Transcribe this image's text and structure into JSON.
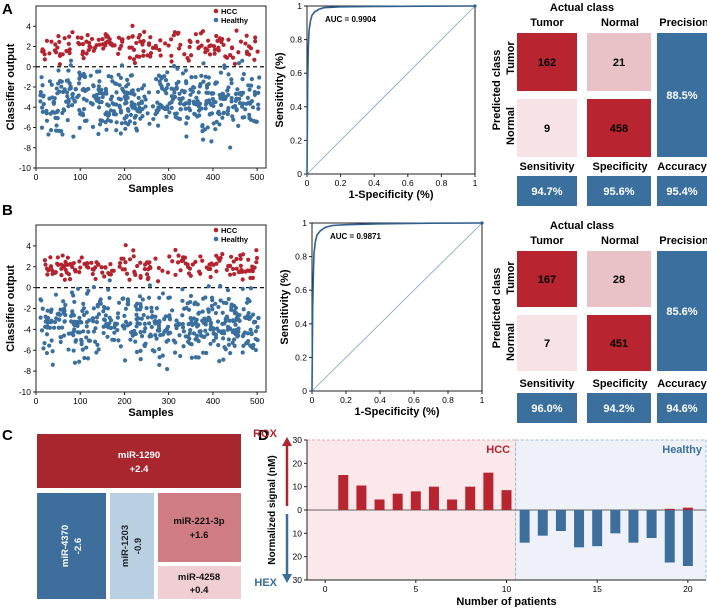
{
  "panel_labels": [
    "A",
    "B",
    "C",
    "D"
  ],
  "colors": {
    "hcc": "#b5232e",
    "healthy": "#3a6f9e",
    "tp": "#b8242f",
    "fp_light": "#e8c2c6",
    "fn_light": "#f7e3e6",
    "blue_box": "#3a6f9e",
    "tm_red": "#a8262e",
    "tm_blue": "#3d6e9c",
    "tm_lightblue": "#b9cfe2",
    "tm_pink": "#cf7c85",
    "tm_lightpink": "#efcfd3",
    "hcc_band": "#fbe8ea",
    "healthy_band": "#eef2f8"
  },
  "chart_data": [
    {
      "id": "A-scatter",
      "type": "scatter",
      "title": "",
      "xlabel": "Samples",
      "ylabel": "Classifier output",
      "xlim": [
        0,
        520
      ],
      "ylim": [
        -10,
        6
      ],
      "xticks": [
        0,
        100,
        200,
        300,
        400,
        500
      ],
      "yticks": [
        4,
        2,
        0,
        -2,
        -4,
        -6,
        -8,
        -10
      ],
      "threshold": 0,
      "legend": [
        "HCC",
        "Healthy"
      ],
      "series": [
        {
          "name": "HCC",
          "n": 171,
          "mean": 2.0,
          "spread": 0.75,
          "min": -0.6,
          "max": 4.2,
          "seed": 11
        },
        {
          "name": "Healthy",
          "n": 479,
          "mean": -3.4,
          "spread": 1.6,
          "min": -9.8,
          "max": 0.6,
          "seed": 23
        }
      ]
    },
    {
      "id": "A-roc",
      "type": "line",
      "xlabel": "1-Specificity (%)",
      "ylabel": "Sensitivity (%)",
      "xlim": [
        0,
        1
      ],
      "ylim": [
        0,
        1
      ],
      "xticks": [
        0,
        0.2,
        0.4,
        0.6,
        0.8,
        1
      ],
      "xtick_labels": [
        "0",
        "0.2",
        "0.4",
        "0.6",
        "0.8",
        "1"
      ],
      "yticks": [
        0,
        0.2,
        0.4,
        0.6,
        0.8,
        1
      ],
      "ytick_labels": [
        "0",
        "0.2",
        "0.4",
        "0.6",
        "0.8",
        "1"
      ],
      "annotation": "AUC = 0.9904",
      "roc_x": [
        0,
        0.004,
        0.008,
        0.012,
        0.02,
        0.03,
        0.045,
        0.07,
        0.1,
        0.2,
        0.4,
        0.7,
        1
      ],
      "roc_y": [
        0,
        0.55,
        0.75,
        0.85,
        0.91,
        0.945,
        0.965,
        0.98,
        0.99,
        0.995,
        0.997,
        0.999,
        1
      ]
    },
    {
      "id": "B-scatter",
      "type": "scatter",
      "xlabel": "Samples",
      "ylabel": "Classifier output",
      "xlim": [
        0,
        520
      ],
      "ylim": [
        -10,
        6
      ],
      "xticks": [
        0,
        100,
        200,
        300,
        400,
        500
      ],
      "yticks": [
        4,
        2,
        0,
        -2,
        -4,
        -6,
        -8,
        -10
      ],
      "threshold": 0,
      "legend": [
        "HCC",
        "Healthy"
      ],
      "series": [
        {
          "name": "HCC",
          "n": 174,
          "mean": 2.0,
          "spread": 0.7,
          "min": -0.5,
          "max": 4.3,
          "seed": 37
        },
        {
          "name": "Healthy",
          "n": 479,
          "mean": -3.5,
          "spread": 1.6,
          "min": -9.6,
          "max": 0.7,
          "seed": 53
        }
      ]
    },
    {
      "id": "B-roc",
      "type": "line",
      "xlabel": "1-Specificity (%)",
      "ylabel": "Sensitivity (%)",
      "xlim": [
        0,
        1
      ],
      "ylim": [
        0,
        1
      ],
      "xticks": [
        0,
        0.2,
        0.4,
        0.6,
        0.8,
        1
      ],
      "xtick_labels": [
        "0",
        "0.2",
        "0.4",
        "0.6",
        "0.8",
        "1"
      ],
      "yticks": [
        0,
        0.2,
        0.4,
        0.6,
        0.8,
        1
      ],
      "ytick_labels": [
        "0",
        "0.2",
        "0.4",
        "0.6",
        "0.8",
        "1"
      ],
      "annotation": "AUC = 0.9871",
      "roc_x": [
        0,
        0.004,
        0.008,
        0.012,
        0.02,
        0.03,
        0.05,
        0.08,
        0.12,
        0.2,
        0.4,
        0.7,
        1
      ],
      "roc_y": [
        0,
        0.5,
        0.7,
        0.82,
        0.89,
        0.93,
        0.955,
        0.975,
        0.985,
        0.99,
        0.995,
        0.999,
        1
      ]
    },
    {
      "id": "D-bars",
      "type": "bar",
      "xlabel": "Number of patients",
      "ylabel": "Normalized signal (nM)",
      "top_arrow_label": "ROX",
      "bottom_arrow_label": "HEX",
      "group_labels": [
        "HCC",
        "Healthy"
      ],
      "categories": [
        1,
        2,
        3,
        4,
        5,
        6,
        7,
        8,
        9,
        10,
        11,
        12,
        13,
        14,
        15,
        16,
        17,
        18,
        19,
        20
      ],
      "xticks": [
        0,
        5,
        10,
        15,
        20
      ],
      "yticks_top": [
        30,
        20,
        10,
        0
      ],
      "yticks_bottom": [
        10,
        20,
        30
      ],
      "ylim": [
        -30,
        30
      ],
      "series": [
        {
          "name": "ROX",
          "values": [
            15,
            10.5,
            4.5,
            7,
            8,
            10,
            4.5,
            10,
            16,
            8.5,
            0,
            0,
            0,
            0,
            0,
            0,
            0,
            0,
            0.5,
            1
          ]
        },
        {
          "name": "HEX",
          "values": [
            0,
            0,
            0,
            0,
            0,
            0,
            0,
            0,
            0,
            0,
            14,
            11,
            9,
            16,
            15.5,
            10,
            14,
            12,
            22.5,
            24
          ]
        }
      ]
    }
  ],
  "confusion": [
    {
      "actual_class_label": "Actual class",
      "col_tumor": "Tumor",
      "col_normal": "Normal",
      "predicted_label": "Predicted class",
      "row_tumor": "Tumor",
      "row_normal": "Normal",
      "precision_label": "Precision",
      "tp": "162",
      "fp": "21",
      "fn": "9",
      "tn": "458",
      "precision": "88.5%",
      "sensitivity_label": "Sensitivity",
      "sensitivity": "94.7%",
      "specificity_label": "Specificity",
      "specificity": "95.6%",
      "accuracy_label": "Accuracy",
      "accuracy": "95.4%"
    },
    {
      "actual_class_label": "Actual class",
      "col_tumor": "Tumor",
      "col_normal": "Normal",
      "predicted_label": "Predicted class",
      "row_tumor": "Tumor",
      "row_normal": "Normal",
      "precision_label": "Precision",
      "tp": "167",
      "fp": "28",
      "fn": "7",
      "tn": "451",
      "precision": "85.6%",
      "sensitivity_label": "Sensitivity",
      "sensitivity": "96.0%",
      "specificity_label": "Specificity",
      "specificity": "94.2%",
      "accuracy_label": "Accuracy",
      "accuracy": "94.6%"
    }
  ],
  "treemap": [
    {
      "name": "miR-1290",
      "value": "+2.4"
    },
    {
      "name": "miR-4370",
      "value": "-2.6"
    },
    {
      "name": "miR-1203",
      "value": "-0.9"
    },
    {
      "name": "miR-221-3p",
      "value": "+1.6"
    },
    {
      "name": "miR-4258",
      "value": "+0.4"
    }
  ]
}
